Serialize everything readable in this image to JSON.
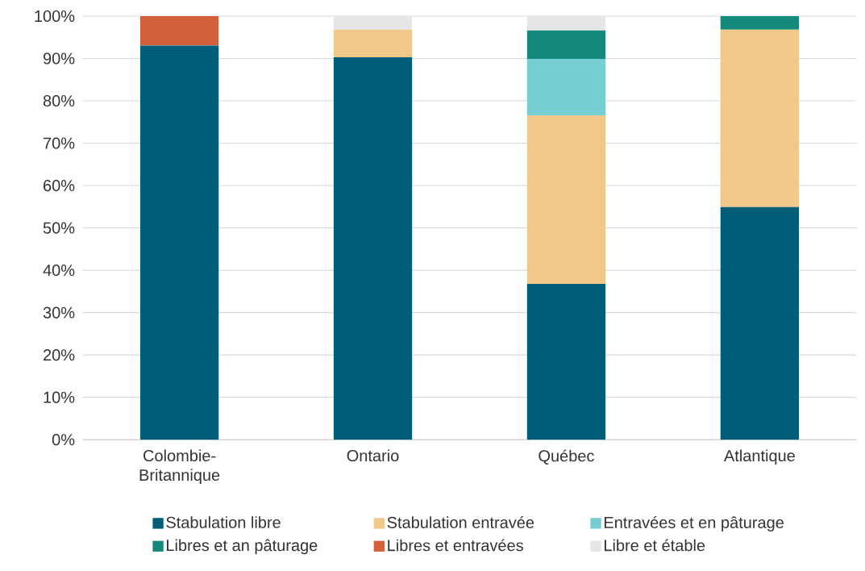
{
  "chart_data": {
    "type": "bar",
    "stacked": true,
    "categories": [
      "Colombie-Britannique",
      "Ontario",
      "Québec",
      "Atlantique"
    ],
    "series": [
      {
        "name": "Stabulation libre",
        "color": "#005e78",
        "values": [
          93.1,
          90.3,
          36.8,
          54.9
        ]
      },
      {
        "name": "Stabulation entravée",
        "color": "#f0c88a",
        "values": [
          0,
          6.5,
          39.8,
          41.9
        ]
      },
      {
        "name": "Entravées et en pâturage",
        "color": "#76cdd2",
        "values": [
          0,
          0,
          13.3,
          0
        ]
      },
      {
        "name": "Libres et an pâturage",
        "color": "#138a7a",
        "values": [
          0,
          0,
          6.7,
          3.2
        ]
      },
      {
        "name": "Libres et entravées",
        "color": "#d2603a",
        "values": [
          6.9,
          0,
          0,
          0
        ]
      },
      {
        "name": "Libre et étable",
        "color": "#e6e6e8",
        "values": [
          0,
          3.2,
          3.4,
          0
        ]
      }
    ],
    "ylim": [
      0,
      100
    ],
    "yticks": [
      {
        "value": 0,
        "label": "0%"
      },
      {
        "value": 10,
        "label": "10%"
      },
      {
        "value": 20,
        "label": "20%"
      },
      {
        "value": 30,
        "label": "30%"
      },
      {
        "value": 40,
        "label": "40%"
      },
      {
        "value": 50,
        "label": "50%"
      },
      {
        "value": 60,
        "label": "60%"
      },
      {
        "value": 70,
        "label": "70%"
      },
      {
        "value": 80,
        "label": "80%"
      },
      {
        "value": 90,
        "label": "90%"
      },
      {
        "value": 100,
        "label": "100%"
      }
    ],
    "grid": "y",
    "legend": "bottom"
  }
}
